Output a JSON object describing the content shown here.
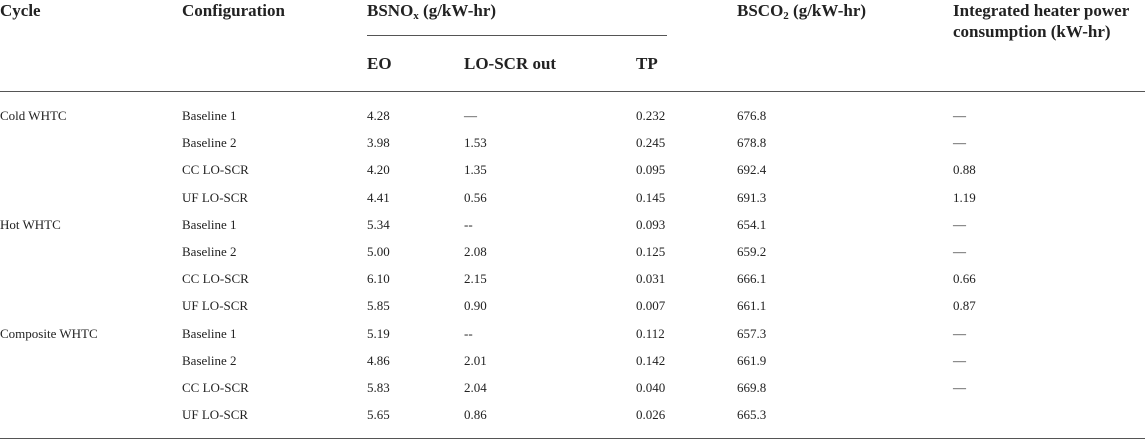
{
  "headers": {
    "cycle": "Cycle",
    "configuration": "Configuration",
    "bsnox_prefix": "BSNO",
    "bsnox_sub": "x",
    "bsnox_suffix": " (g/kW-hr)",
    "eo": "EO",
    "lo_scr_out": "LO-SCR out",
    "tp": "TP",
    "bsco2_prefix": "BSCO",
    "bsco2_sub": "2",
    "bsco2_suffix": " (g/kW-hr)",
    "heater_line1": "Integrated heater power",
    "heater_line2": "consumption (kW-hr)"
  },
  "rows": [
    {
      "cycle": "Cold WHTC",
      "config": "Baseline 1",
      "eo": "4.28",
      "lo": "—",
      "tp": "0.232",
      "bsco2": "676.8",
      "heater": "—"
    },
    {
      "cycle": "",
      "config": "Baseline 2",
      "eo": "3.98",
      "lo": "1.53",
      "tp": "0.245",
      "bsco2": "678.8",
      "heater": "—"
    },
    {
      "cycle": "",
      "config": "CC LO-SCR",
      "eo": "4.20",
      "lo": "1.35",
      "tp": "0.095",
      "bsco2": "692.4",
      "heater": "0.88"
    },
    {
      "cycle": "",
      "config": "UF LO-SCR",
      "eo": "4.41",
      "lo": "0.56",
      "tp": "0.145",
      "bsco2": "691.3",
      "heater": "1.19"
    },
    {
      "cycle": "Hot WHTC",
      "config": "Baseline 1",
      "eo": "5.34",
      "lo": "--",
      "tp": "0.093",
      "bsco2": "654.1",
      "heater": "—"
    },
    {
      "cycle": "",
      "config": "Baseline 2",
      "eo": "5.00",
      "lo": "2.08",
      "tp": "0.125",
      "bsco2": "659.2",
      "heater": "—"
    },
    {
      "cycle": "",
      "config": "CC LO-SCR",
      "eo": "6.10",
      "lo": "2.15",
      "tp": "0.031",
      "bsco2": "666.1",
      "heater": "0.66"
    },
    {
      "cycle": "",
      "config": "UF LO-SCR",
      "eo": "5.85",
      "lo": "0.90",
      "tp": "0.007",
      "bsco2": "661.1",
      "heater": "0.87"
    },
    {
      "cycle": "Composite WHTC",
      "config": "Baseline 1",
      "eo": "5.19",
      "lo": "--",
      "tp": "0.112",
      "bsco2": "657.3",
      "heater": "—"
    },
    {
      "cycle": "",
      "config": "Baseline 2",
      "eo": "4.86",
      "lo": "2.01",
      "tp": "0.142",
      "bsco2": "661.9",
      "heater": "—"
    },
    {
      "cycle": "",
      "config": "CC LO-SCR",
      "eo": "5.83",
      "lo": "2.04",
      "tp": "0.040",
      "bsco2": "669.8",
      "heater": "—"
    },
    {
      "cycle": "",
      "config": "UF LO-SCR",
      "eo": "5.65",
      "lo": "0.86",
      "tp": "0.026",
      "bsco2": "665.3",
      "heater": ""
    }
  ]
}
